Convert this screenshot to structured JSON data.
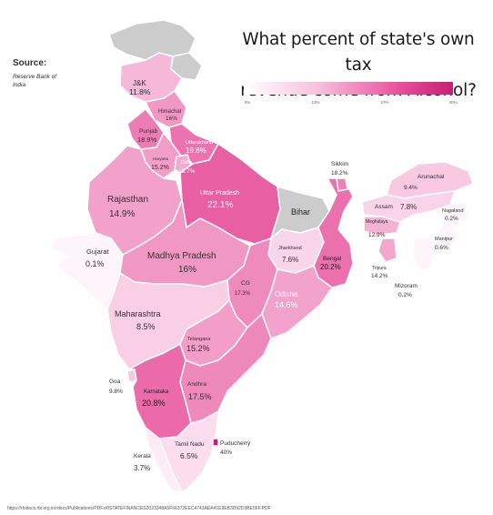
{
  "title_line1": "What percent of state's own tax",
  "title_line2": "revenue come from Alcohol?",
  "source": {
    "label": "Source:",
    "value": "Reserve Bank of India"
  },
  "legend": {
    "ticks": [
      "0%",
      "13%",
      "27%",
      "40%"
    ],
    "min": 0,
    "max": 40
  },
  "url": "https://rbidocs.rbi.org.in/rdocs/Publications/PDFs/0STATEFINANCES2023348A5F66372EEC4743AEA41E9EB3D92D3BE5FF.PDF",
  "colors": {
    "nodata": "#cccccc",
    "border": "#ffffff",
    "low": "#fff2f8",
    "high": "#c81d71"
  },
  "states": [
    {
      "id": "jk",
      "name": "J&K",
      "value": "11.8%",
      "pct": 11.8
    },
    {
      "id": "himachal",
      "name": "Himachal",
      "value": "16%",
      "pct": 16
    },
    {
      "id": "punjab",
      "name": "Punjab",
      "value": "18.9%",
      "pct": 18.9
    },
    {
      "id": "uttarakhand",
      "name": "Uttarakhand",
      "value": "19.8%",
      "pct": 19.8
    },
    {
      "id": "haryana",
      "name": "Haryana",
      "value": "15.2%",
      "pct": 15.2
    },
    {
      "id": "delhi",
      "name": "Delhi",
      "value": "13.7%",
      "pct": 13.7
    },
    {
      "id": "rajasthan",
      "name": "Rajasthan",
      "value": "14.9%",
      "pct": 14.9
    },
    {
      "id": "up",
      "name": "Uttar Pradesh",
      "value": "22.1%",
      "pct": 22.1
    },
    {
      "id": "gujarat",
      "name": "Gujarat",
      "value": "0.1%",
      "pct": 0.1
    },
    {
      "id": "mp",
      "name": "Madhya Pradesh",
      "value": "16%",
      "pct": 16
    },
    {
      "id": "bihar",
      "name": "Bihar",
      "value": "",
      "pct": null
    },
    {
      "id": "sikkim",
      "name": "Sikkim",
      "value": "18.2%",
      "pct": 18.2
    },
    {
      "id": "arunachal",
      "name": "Arunachal",
      "value": "9.4%",
      "pct": 9.4
    },
    {
      "id": "assam",
      "name": "Assam",
      "value": "7.8%",
      "pct": 7.8
    },
    {
      "id": "nagaland",
      "name": "Nagaland",
      "value": "0.2%",
      "pct": 0.2
    },
    {
      "id": "meghalaya",
      "name": "Meghalaya",
      "value": "12.9%",
      "pct": 12.9
    },
    {
      "id": "manipur",
      "name": "Manipur",
      "value": "0.6%",
      "pct": 0.6
    },
    {
      "id": "tripura",
      "name": "Tripura",
      "value": "14.2%",
      "pct": 14.2
    },
    {
      "id": "mizoram",
      "name": "Mizoram",
      "value": "0.2%",
      "pct": 0.2
    },
    {
      "id": "jharkhand",
      "name": "Jharkhand",
      "value": "7.6%",
      "pct": 7.6
    },
    {
      "id": "bengal",
      "name": "Bengal",
      "value": "20.2%",
      "pct": 20.2
    },
    {
      "id": "cg",
      "name": "CG",
      "value": "17.3%",
      "pct": 17.3
    },
    {
      "id": "odisha",
      "name": "Odisha",
      "value": "14.6%",
      "pct": 14.6
    },
    {
      "id": "maharashtra",
      "name": "Maharashtra",
      "value": "8.5%",
      "pct": 8.5
    },
    {
      "id": "telangana",
      "name": "Telangana",
      "value": "15.2%",
      "pct": 15.2
    },
    {
      "id": "goa",
      "name": "Goa",
      "value": "9.8%",
      "pct": 9.8
    },
    {
      "id": "karnataka",
      "name": "Karnataka",
      "value": "20.8%",
      "pct": 20.8
    },
    {
      "id": "andhra",
      "name": "Andhra",
      "value": "17.5%",
      "pct": 17.5
    },
    {
      "id": "tamilnadu",
      "name": "Tamil Nadu",
      "value": "6.5%",
      "pct": 6.5
    },
    {
      "id": "puducherry",
      "name": "Puducherry",
      "value": "40%",
      "pct": 40
    },
    {
      "id": "kerala",
      "name": "Kerala",
      "value": "3.7%",
      "pct": 3.7
    }
  ]
}
